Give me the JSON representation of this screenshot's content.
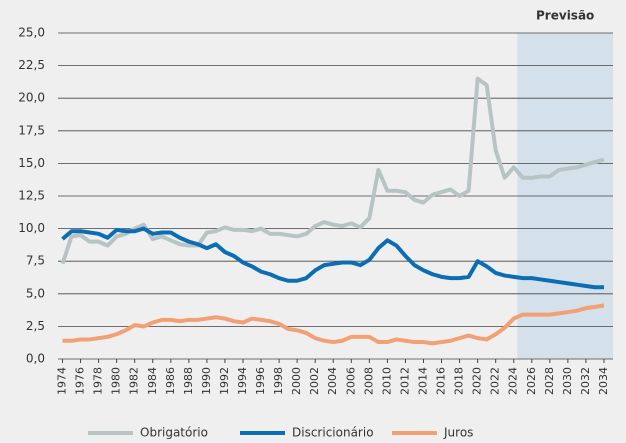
{
  "chart_data": {
    "type": "line",
    "x": [
      1974,
      1975,
      1976,
      1977,
      1978,
      1979,
      1980,
      1981,
      1982,
      1983,
      1984,
      1985,
      1986,
      1987,
      1988,
      1989,
      1990,
      1991,
      1992,
      1993,
      1994,
      1995,
      1996,
      1997,
      1998,
      1999,
      2000,
      2001,
      2002,
      2003,
      2004,
      2005,
      2006,
      2007,
      2008,
      2009,
      2010,
      2011,
      2012,
      2013,
      2014,
      2015,
      2016,
      2017,
      2018,
      2019,
      2020,
      2021,
      2022,
      2023,
      2024,
      2025,
      2026,
      2027,
      2028,
      2029,
      2030,
      2031,
      2032,
      2033,
      2034
    ],
    "series": [
      {
        "name": "Obrigatório",
        "color": "#b8c4c4",
        "values": [
          7.3,
          9.4,
          9.5,
          9.0,
          9.0,
          8.7,
          9.4,
          9.6,
          10.0,
          10.3,
          9.2,
          9.4,
          9.1,
          8.8,
          8.7,
          8.7,
          9.7,
          9.8,
          10.1,
          9.9,
          9.9,
          9.8,
          10.0,
          9.6,
          9.6,
          9.5,
          9.4,
          9.6,
          10.2,
          10.5,
          10.3,
          10.2,
          10.4,
          10.1,
          10.8,
          14.5,
          12.9,
          12.9,
          12.8,
          12.2,
          12.0,
          12.6,
          12.8,
          13.0,
          12.5,
          12.9,
          21.5,
          21.0,
          16.0,
          13.9,
          14.7,
          13.9,
          13.9,
          14.0,
          14.0,
          14.5,
          14.6,
          14.7,
          14.9,
          15.1,
          15.3
        ]
      },
      {
        "name": "Discricionário",
        "color": "#0b6db4",
        "values": [
          9.2,
          9.8,
          9.8,
          9.7,
          9.6,
          9.3,
          9.9,
          9.8,
          9.8,
          10.0,
          9.6,
          9.7,
          9.7,
          9.3,
          9.0,
          8.8,
          8.5,
          8.8,
          8.2,
          7.9,
          7.4,
          7.1,
          6.7,
          6.5,
          6.2,
          6.0,
          6.0,
          6.2,
          6.8,
          7.2,
          7.3,
          7.4,
          7.4,
          7.2,
          7.6,
          8.5,
          9.1,
          8.7,
          7.9,
          7.2,
          6.8,
          6.5,
          6.3,
          6.2,
          6.2,
          6.3,
          7.5,
          7.1,
          6.6,
          6.4,
          6.3,
          6.2,
          6.2,
          6.1,
          6.0,
          5.9,
          5.8,
          5.7,
          5.6,
          5.5,
          5.5
        ]
      },
      {
        "name": "Juros",
        "color": "#f2a074",
        "values": [
          1.4,
          1.4,
          1.5,
          1.5,
          1.6,
          1.7,
          1.9,
          2.2,
          2.6,
          2.5,
          2.8,
          3.0,
          3.0,
          2.9,
          3.0,
          3.0,
          3.1,
          3.2,
          3.1,
          2.9,
          2.8,
          3.1,
          3.0,
          2.9,
          2.7,
          2.3,
          2.2,
          2.0,
          1.6,
          1.4,
          1.3,
          1.4,
          1.7,
          1.7,
          1.7,
          1.3,
          1.3,
          1.5,
          1.4,
          1.3,
          1.3,
          1.2,
          1.3,
          1.4,
          1.6,
          1.8,
          1.6,
          1.5,
          1.9,
          2.4,
          3.1,
          3.4,
          3.4,
          3.4,
          3.4,
          3.5,
          3.6,
          3.7,
          3.9,
          4.0,
          4.1
        ]
      }
    ],
    "xlim": [
      1973.5,
      2035
    ],
    "xticks": [
      1974,
      1976,
      1978,
      1980,
      1982,
      1984,
      1986,
      1988,
      1990,
      1992,
      1994,
      1996,
      1998,
      2000,
      2002,
      2004,
      2006,
      2008,
      2010,
      2012,
      2014,
      2016,
      2018,
      2020,
      2022,
      2024,
      2026,
      2028,
      2030,
      2032,
      2034
    ],
    "ylim": [
      0,
      25
    ],
    "yticks": [
      {
        "value": 0,
        "label": "0,0"
      },
      {
        "value": 2.5,
        "label": "2,5"
      },
      {
        "value": 5,
        "label": "5,0"
      },
      {
        "value": 7.5,
        "label": "7,5"
      },
      {
        "value": 10,
        "label": "10,0"
      },
      {
        "value": 12.5,
        "label": "12,5"
      },
      {
        "value": 15,
        "label": "15,0"
      },
      {
        "value": 17.5,
        "label": "17,5"
      },
      {
        "value": 20,
        "label": "20,0"
      },
      {
        "value": 22.5,
        "label": "22,5"
      },
      {
        "value": 25,
        "label": "25,0"
      }
    ],
    "grid": true,
    "shaded_region": {
      "label": "Previsão",
      "start": 2024.4,
      "end": 2035,
      "color": "#d4e1ea"
    },
    "legend": "bottom"
  }
}
